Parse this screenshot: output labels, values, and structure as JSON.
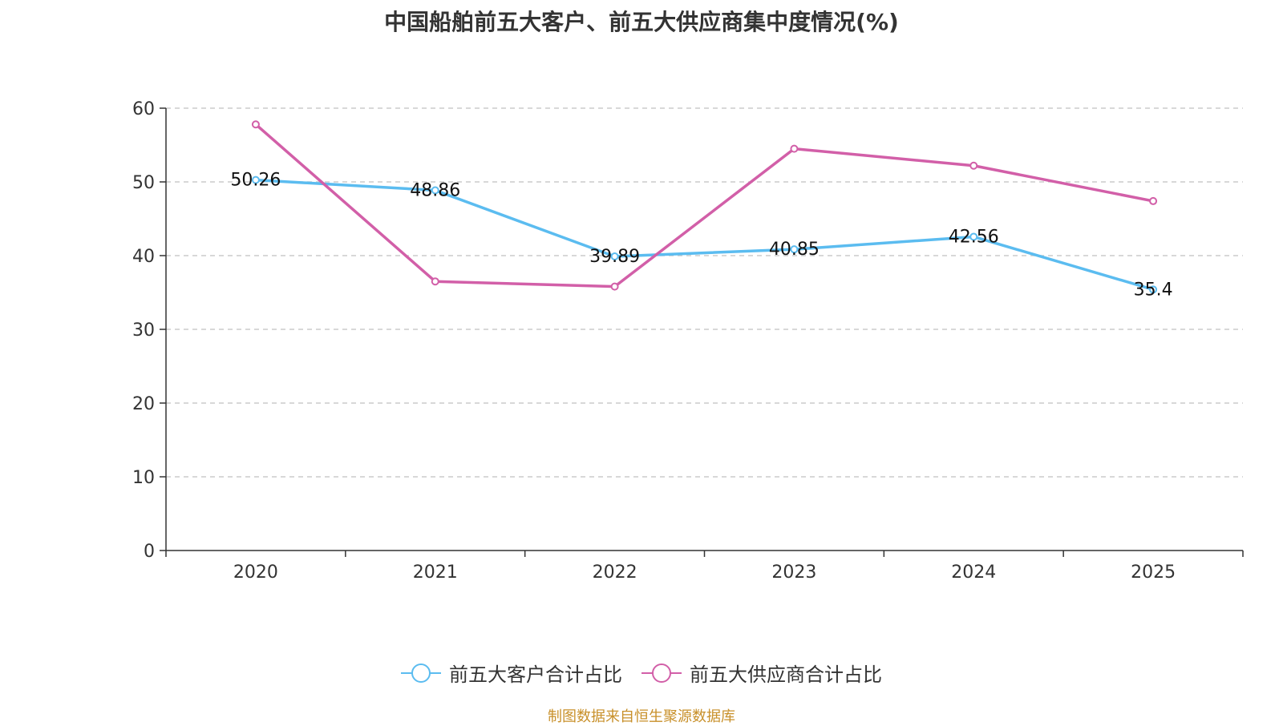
{
  "chart_data": {
    "type": "line",
    "title": "中国船舶前五大客户、前五大供应商集中度情况(%)",
    "categories": [
      "2020",
      "2021",
      "2022",
      "2023",
      "2024",
      "2025"
    ],
    "ylim": [
      0,
      60
    ],
    "yticks": [
      0,
      10,
      20,
      30,
      40,
      50,
      60
    ],
    "grid": true,
    "legend_position": "bottom",
    "series": [
      {
        "name": "前五大客户合计占比",
        "color": "#5bbcf0",
        "values": [
          50.26,
          48.86,
          39.89,
          40.85,
          42.56,
          35.4
        ],
        "labels": [
          "50.26",
          "48.86",
          "39.89",
          "40.85",
          "42.56",
          "35.4"
        ],
        "show_labels": true
      },
      {
        "name": "前五大供应商合计占比",
        "color": "#d25fa8",
        "values": [
          57.8,
          36.5,
          35.8,
          54.5,
          52.2,
          47.4
        ],
        "show_labels": false
      }
    ]
  },
  "source": "制图数据来自恒生聚源数据库"
}
